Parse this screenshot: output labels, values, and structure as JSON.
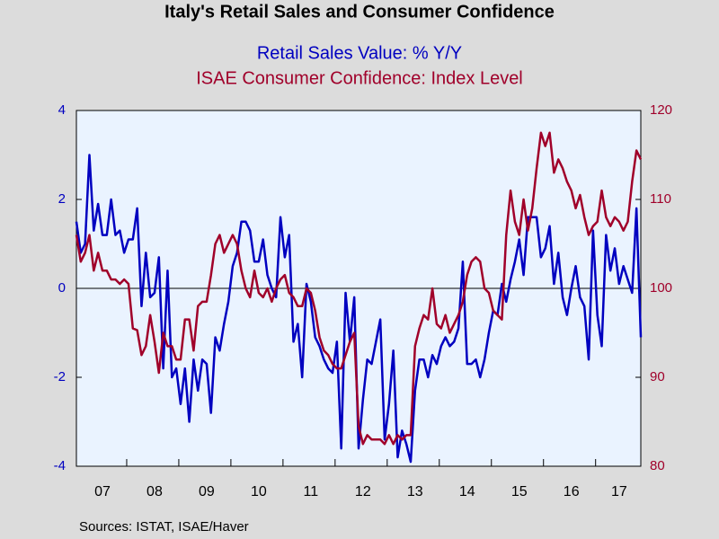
{
  "chart_data": {
    "type": "line",
    "title": "Italy's Retail Sales and Consumer Confidence",
    "source": "Sources:  ISTAT, ISAE/Haver",
    "categories": [
      null,
      null,
      null,
      null,
      null,
      null,
      "07",
      null,
      null,
      null,
      null,
      null,
      null,
      null,
      null,
      null,
      null,
      null,
      "08",
      null,
      null,
      null,
      null,
      null,
      null,
      null,
      null,
      null,
      null,
      null,
      "09",
      null,
      null,
      null,
      null,
      null,
      null,
      null,
      null,
      null,
      null,
      null,
      "10",
      null,
      null,
      null,
      null,
      null,
      null,
      null,
      null,
      null,
      null,
      null,
      "11",
      null,
      null,
      null,
      null,
      null,
      null,
      null,
      null,
      null,
      null,
      null,
      "12",
      null,
      null,
      null,
      null,
      null,
      null,
      null,
      null,
      null,
      null,
      null,
      "13",
      null,
      null,
      null,
      null,
      null,
      null,
      null,
      null,
      null,
      null,
      null,
      "14",
      null,
      null,
      null,
      null,
      null,
      null,
      null,
      null,
      null,
      null,
      null,
      "15",
      null,
      null,
      null,
      null,
      null,
      null,
      null,
      null,
      null,
      null,
      null,
      "16",
      null,
      null,
      null,
      null,
      null,
      null,
      null,
      null,
      null,
      null,
      "17",
      null,
      null,
      null,
      null,
      null
    ],
    "series": [
      {
        "name": "Retail Sales Value: % Y/Y",
        "color": "#0000c0",
        "axis": "y",
        "values": [
          1.5,
          0.8,
          1.0,
          3.0,
          1.3,
          1.9,
          1.2,
          1.2,
          2.0,
          1.2,
          1.3,
          0.8,
          1.1,
          1.1,
          1.8,
          -0.4,
          0.8,
          -0.2,
          -0.1,
          0.7,
          -1.8,
          0.4,
          -2.0,
          -1.8,
          -2.6,
          -1.8,
          -3.0,
          -1.6,
          -2.3,
          -1.6,
          -1.7,
          -2.8,
          -1.1,
          -1.4,
          -0.8,
          -0.3,
          0.5,
          0.8,
          1.5,
          1.5,
          1.3,
          0.6,
          0.6,
          1.1,
          0.3,
          0.0,
          -0.2,
          1.6,
          0.7,
          1.2,
          -1.2,
          -0.8,
          -2.0,
          0.1,
          -0.3,
          -1.1,
          -1.3,
          -1.6,
          -1.8,
          -1.9,
          -1.2,
          -3.6,
          -0.1,
          -1.2,
          -0.2,
          -3.6,
          -2.5,
          -1.6,
          -1.7,
          -1.2,
          -0.7,
          -3.4,
          -2.6,
          -1.4,
          -3.8,
          -3.2,
          -3.5,
          -3.9,
          -2.3,
          -1.6,
          -1.6,
          -2.0,
          -1.5,
          -1.7,
          -1.3,
          -1.1,
          -1.3,
          -1.2,
          -0.9,
          0.6,
          -1.7,
          -1.7,
          -1.6,
          -2.0,
          -1.6,
          -1.0,
          -0.5,
          -0.6,
          0.1,
          -0.3,
          0.2,
          0.6,
          1.1,
          0.3,
          1.6,
          1.6,
          1.6,
          0.7,
          0.9,
          1.4,
          0.1,
          0.8,
          -0.2,
          -0.6,
          0.0,
          0.5,
          -0.2,
          -0.4,
          -1.6,
          1.3,
          -0.6,
          -1.3,
          1.2,
          0.4,
          0.9,
          0.1,
          0.5,
          0.2,
          -0.1,
          1.8,
          -1.1
        ]
      },
      {
        "name": "ISAE Consumer Confidence: Index Level",
        "color": "#a0002a",
        "axis": "y2",
        "values": [
          106,
          103,
          104,
          106,
          102,
          104,
          102,
          102,
          101,
          101,
          100.5,
          101,
          100.5,
          95.5,
          95.3,
          92.5,
          93.5,
          97,
          94,
          90.5,
          95,
          93.5,
          93.5,
          92,
          92,
          96.5,
          96.5,
          93,
          98,
          98.5,
          98.5,
          101.5,
          105,
          106,
          104,
          105,
          106,
          105,
          102,
          100,
          99,
          102,
          99.5,
          99,
          100,
          98.5,
          100,
          101,
          101.5,
          99.5,
          99,
          98,
          98,
          100,
          99.5,
          97.5,
          94.5,
          93,
          92.5,
          91.5,
          91,
          91,
          92.5,
          94,
          95,
          84.5,
          82.5,
          83.5,
          83,
          83,
          83,
          82.5,
          83.5,
          82.5,
          83.5,
          83,
          83.5,
          83.5,
          93.5,
          95.5,
          97,
          96.5,
          100,
          96,
          95.5,
          97,
          95,
          96,
          97,
          98.5,
          101.5,
          103,
          103.5,
          103,
          100,
          99.5,
          97.5,
          97,
          96.5,
          106,
          111,
          107.5,
          106,
          110,
          106.5,
          109,
          113.5,
          117.5,
          116,
          117.5,
          113,
          114.5,
          113.5,
          112,
          111,
          109,
          110.5,
          108,
          106,
          107,
          107.5,
          111,
          108,
          107,
          108,
          107.5,
          106.5,
          107.5,
          112,
          115.5,
          114.5
        ]
      }
    ],
    "ylim": [
      -4,
      4
    ],
    "yticks": [
      -4,
      -2,
      0,
      2,
      4
    ],
    "y2lim": [
      80,
      120
    ],
    "y2ticks": [
      80,
      90,
      100,
      110,
      120
    ],
    "hline": 0
  }
}
